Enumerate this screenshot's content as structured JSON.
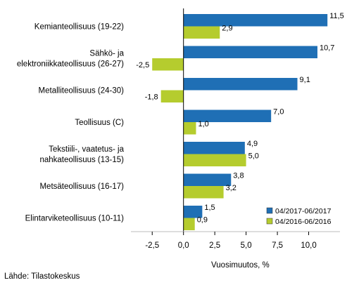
{
  "chart_data": {
    "type": "bar",
    "orientation": "horizontal",
    "categories": [
      "Kemianteollisuus (19-22)",
      "Sähkö- ja\nelektroniikkateollisuus (26-27)",
      "Metalliteollisuus (24-30)",
      "Teollisuus (C)",
      "Tekstiili-, vaatetus- ja\nnahkateollisuus (13-15)",
      "Metsäteollisuus (16-17)",
      "Elintarviketeollisuus (10-11)"
    ],
    "series": [
      {
        "name": "04/2017-06/2017",
        "color": "#1f6fb5",
        "values": [
          11.5,
          10.7,
          9.1,
          7.0,
          4.9,
          3.8,
          1.5
        ]
      },
      {
        "name": "04/2016-06/2016",
        "color": "#b5cc2e",
        "values": [
          2.9,
          -2.5,
          -1.8,
          1.0,
          5.0,
          3.2,
          0.9
        ]
      }
    ],
    "value_labels": [
      [
        "11,5",
        "10,7",
        "9,1",
        "7,0",
        "4,9",
        "3,8",
        "1,5"
      ],
      [
        "2,9",
        "-2,5",
        "-1,8",
        "1,0",
        "5,0",
        "3,2",
        "0,9"
      ]
    ],
    "xlim": [
      -4.2,
      12.5
    ],
    "xticks": [
      -2.5,
      0.0,
      2.5,
      5.0,
      7.5,
      10.0
    ],
    "xtick_labels": [
      "-2,5",
      "0,0",
      "2,5",
      "5,0",
      "7,5",
      "10,0"
    ],
    "xlabel": "Vuosimuutos, %",
    "legend_position": "bottom-right",
    "grid": false
  },
  "source_text": "Lähde: Tilastokeskus"
}
